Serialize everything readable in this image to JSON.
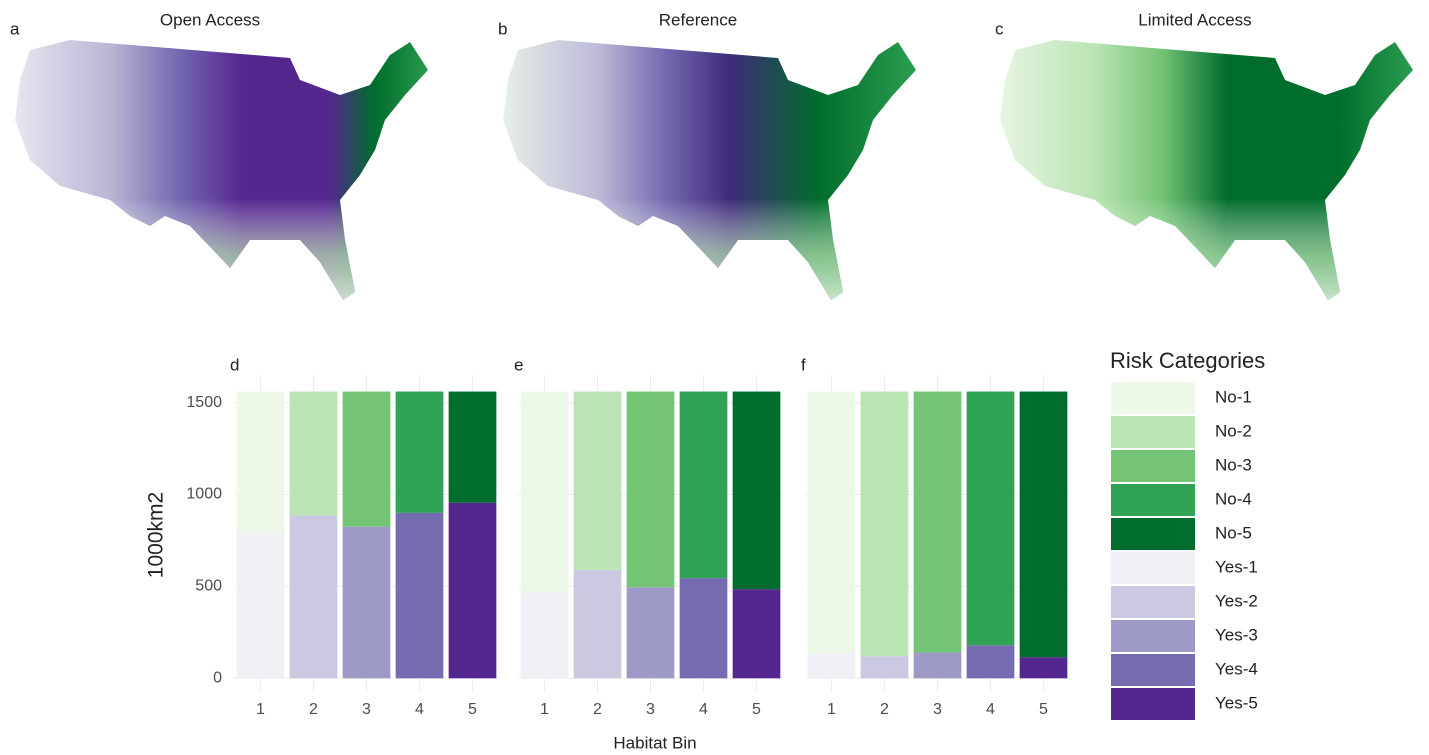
{
  "maps": [
    {
      "label": "a",
      "title": "Open Access"
    },
    {
      "label": "b",
      "title": "Reference"
    },
    {
      "label": "c",
      "title": "Limited Access"
    }
  ],
  "chart_data": {
    "type": "bar",
    "stacked": true,
    "xlabel": "Habitat Bin",
    "ylabel": "1000km2",
    "categories": [
      "1",
      "2",
      "3",
      "4",
      "5"
    ],
    "ylim": [
      -80,
      1650
    ],
    "yticks": [
      0,
      500,
      1000,
      1500
    ],
    "grid": true,
    "legend": {
      "title": "Risk Categories",
      "position": "right",
      "items": [
        {
          "name": "No-1",
          "color": "#edf8e9"
        },
        {
          "name": "No-2",
          "color": "#bae4b3"
        },
        {
          "name": "No-3",
          "color": "#74c476"
        },
        {
          "name": "No-4",
          "color": "#31a354"
        },
        {
          "name": "No-5",
          "color": "#006d2c"
        },
        {
          "name": "Yes-1",
          "color": "#f2f0f7"
        },
        {
          "name": "Yes-2",
          "color": "#cbc9e2"
        },
        {
          "name": "Yes-3",
          "color": "#9e9ac8"
        },
        {
          "name": "Yes-4",
          "color": "#756bb1"
        },
        {
          "name": "Yes-5",
          "color": "#54278f"
        }
      ]
    },
    "panels": [
      {
        "label": "d",
        "series": [
          {
            "values": [
              790,
              885,
              825,
              900,
              955
            ],
            "colors": [
              "#f2f0f7",
              "#cbc9e2",
              "#9e9ac8",
              "#756bb1",
              "#54278f"
            ]
          },
          {
            "values": [
              770,
              675,
              735,
              660,
              605
            ],
            "colors": [
              "#edf8e9",
              "#bae4b3",
              "#74c476",
              "#31a354",
              "#006d2c"
            ]
          }
        ]
      },
      {
        "label": "e",
        "series": [
          {
            "values": [
              465,
              590,
              495,
              545,
              485
            ],
            "colors": [
              "#f2f0f7",
              "#cbc9e2",
              "#9e9ac8",
              "#756bb1",
              "#54278f"
            ]
          },
          {
            "values": [
              1095,
              970,
              1065,
              1015,
              1075
            ],
            "colors": [
              "#edf8e9",
              "#bae4b3",
              "#74c476",
              "#31a354",
              "#006d2c"
            ]
          }
        ]
      },
      {
        "label": "f",
        "series": [
          {
            "values": [
              135,
              120,
              140,
              180,
              115
            ],
            "colors": [
              "#f2f0f7",
              "#cbc9e2",
              "#9e9ac8",
              "#756bb1",
              "#54278f"
            ]
          },
          {
            "values": [
              1425,
              1440,
              1420,
              1380,
              1445
            ],
            "colors": [
              "#edf8e9",
              "#bae4b3",
              "#74c476",
              "#31a354",
              "#006d2c"
            ]
          }
        ]
      }
    ]
  }
}
